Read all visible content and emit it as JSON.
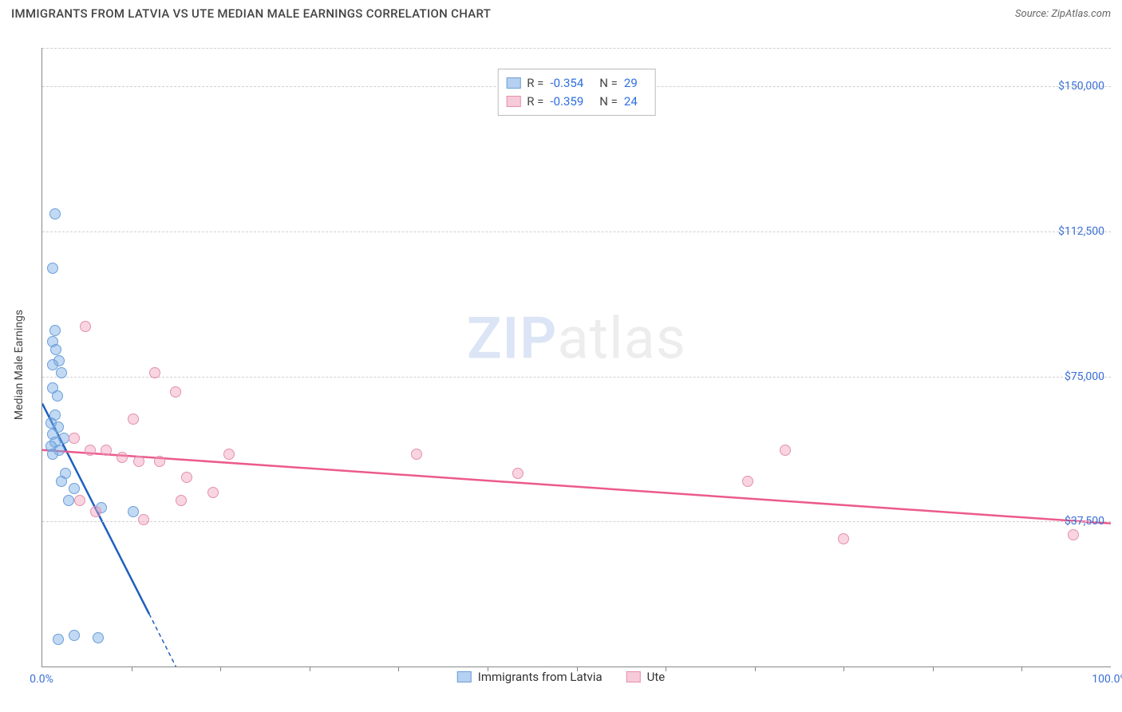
{
  "header": {
    "title": "IMMIGRANTS FROM LATVIA VS UTE MEDIAN MALE EARNINGS CORRELATION CHART",
    "source_label": "Source:",
    "source_name": "ZipAtlas.com"
  },
  "watermark": {
    "part1": "ZIP",
    "part2": "atlas"
  },
  "chart": {
    "type": "scatter",
    "background_color": "#ffffff",
    "grid_color": "#d0d0d0",
    "axis_color": "#888888",
    "tick_label_color": "#3b6fd6",
    "y_axis_title": "Median Male Earnings",
    "xlim": [
      0,
      100
    ],
    "ylim": [
      0,
      160000
    ],
    "y_ticks": [
      {
        "v": 37500,
        "label": "$37,500"
      },
      {
        "v": 75000,
        "label": "$75,000"
      },
      {
        "v": 112500,
        "label": "$112,500"
      },
      {
        "v": 150000,
        "label": "$150,000"
      }
    ],
    "x_ticks": [
      {
        "v": 0,
        "label": "0.0%"
      },
      {
        "v": 100,
        "label": "100.0%"
      }
    ],
    "x_minor_ticks": [
      8.33,
      16.67,
      25,
      33.33,
      41.67,
      50,
      58.33,
      66.67,
      75,
      83.33,
      91.67
    ],
    "marker_radius": 7,
    "series": [
      {
        "name": "Immigrants from Latvia",
        "fill": "rgba(120,170,230,0.45)",
        "stroke": "#6a9fd8",
        "trend_color": "#1f5fc0",
        "trend_width": 2.5,
        "trend": {
          "x1": 0,
          "y1": 68000,
          "x2": 12.5,
          "y2": 0,
          "solid_until_x": 10
        },
        "points": [
          [
            1.2,
            117000
          ],
          [
            1.0,
            103000
          ],
          [
            1.2,
            87000
          ],
          [
            1.0,
            84000
          ],
          [
            1.3,
            82000
          ],
          [
            1.6,
            79000
          ],
          [
            1.0,
            78000
          ],
          [
            1.8,
            76000
          ],
          [
            1.0,
            72000
          ],
          [
            1.4,
            70000
          ],
          [
            1.2,
            65000
          ],
          [
            0.8,
            63000
          ],
          [
            1.5,
            62000
          ],
          [
            1.0,
            60000
          ],
          [
            2.0,
            59000
          ],
          [
            1.2,
            58000
          ],
          [
            0.8,
            57000
          ],
          [
            1.6,
            56000
          ],
          [
            1.0,
            55000
          ],
          [
            2.2,
            50000
          ],
          [
            1.8,
            48000
          ],
          [
            3.0,
            46000
          ],
          [
            2.5,
            43000
          ],
          [
            5.5,
            41000
          ],
          [
            8.5,
            40000
          ],
          [
            3.0,
            8000
          ],
          [
            5.2,
            7500
          ],
          [
            1.5,
            7000
          ]
        ]
      },
      {
        "name": "Ute",
        "fill": "rgba(240,150,180,0.40)",
        "stroke": "#e48fb0",
        "trend_color": "#ec5a8d",
        "trend_width": 2.5,
        "trend": {
          "x1": 0,
          "y1": 56000,
          "x2": 100,
          "y2": 37000,
          "solid_until_x": 100
        },
        "points": [
          [
            4.0,
            88000
          ],
          [
            10.5,
            76000
          ],
          [
            12.5,
            71000
          ],
          [
            8.5,
            64000
          ],
          [
            3.0,
            59000
          ],
          [
            4.5,
            56000
          ],
          [
            6.0,
            56000
          ],
          [
            7.5,
            54000
          ],
          [
            9.0,
            53000
          ],
          [
            11.0,
            53000
          ],
          [
            17.5,
            55000
          ],
          [
            13.5,
            49000
          ],
          [
            16.0,
            45000
          ],
          [
            13.0,
            43000
          ],
          [
            3.5,
            43000
          ],
          [
            5.0,
            40000
          ],
          [
            9.5,
            38000
          ],
          [
            35.0,
            55000
          ],
          [
            44.5,
            50000
          ],
          [
            66.0,
            48000
          ],
          [
            69.5,
            56000
          ],
          [
            75.0,
            33000
          ],
          [
            96.5,
            34000
          ]
        ]
      }
    ],
    "legend_top": [
      {
        "swatch_fill": "rgba(120,170,230,0.55)",
        "swatch_stroke": "#6a9fd8",
        "r_label": "R =",
        "r_value": "-0.354",
        "n_label": "N =",
        "n_value": "29"
      },
      {
        "swatch_fill": "rgba(240,150,180,0.50)",
        "swatch_stroke": "#e48fb0",
        "r_label": "R =",
        "r_value": "-0.359",
        "n_label": "N =",
        "n_value": "24"
      }
    ],
    "legend_bottom": [
      {
        "swatch_fill": "rgba(120,170,230,0.55)",
        "swatch_stroke": "#6a9fd8",
        "label": "Immigrants from Latvia"
      },
      {
        "swatch_fill": "rgba(240,150,180,0.50)",
        "swatch_stroke": "#e48fb0",
        "label": "Ute"
      }
    ]
  }
}
